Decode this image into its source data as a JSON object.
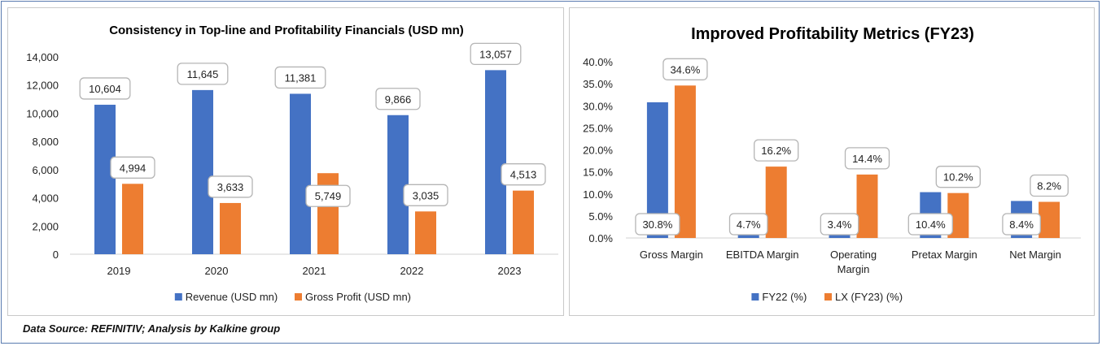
{
  "colors": {
    "series1": "#4472C4",
    "series2": "#ED7D31",
    "label_border": "#b5b5b5",
    "border": "#5a7bb0"
  },
  "footer": "Data Source: REFINITIV; Analysis by Kalkine group",
  "chart_data": [
    {
      "type": "bar",
      "title": "Consistency in Top-line and Profitability Financials (USD mn)",
      "categories": [
        "2019",
        "2020",
        "2021",
        "2022",
        "2023"
      ],
      "series": [
        {
          "name": "Revenue (USD mn)",
          "values": [
            10604,
            11645,
            11381,
            9866,
            13057
          ],
          "labels": [
            "10,604",
            "11,645",
            "11,381",
            "9,866",
            "13,057"
          ]
        },
        {
          "name": "Gross Profit (USD mn)",
          "values": [
            4994,
            3633,
            5749,
            3035,
            4513
          ],
          "labels": [
            "4,994",
            "3,633",
            "5,749",
            "3,035",
            "4,513"
          ]
        }
      ],
      "yticks": [
        "0",
        "2,000",
        "4,000",
        "6,000",
        "8,000",
        "10,000",
        "12,000",
        "14,000"
      ],
      "ylim": [
        0,
        14000
      ],
      "xlabel": "",
      "ylabel": "",
      "legend": "bottom"
    },
    {
      "type": "bar",
      "title": "Improved Profitability Metrics (FY23)",
      "categories": [
        [
          "Gross Margin"
        ],
        [
          "EBITDA Margin"
        ],
        [
          "Operating",
          "Margin"
        ],
        [
          "Pretax Margin"
        ],
        [
          "Net Margin"
        ]
      ],
      "series": [
        {
          "name": "FY22 (%)",
          "values": [
            30.8,
            4.7,
            3.4,
            10.4,
            8.4
          ],
          "labels": [
            "30.8%",
            "4.7%",
            "3.4%",
            "10.4%",
            "8.4%"
          ]
        },
        {
          "name": "LX (FY23) (%)",
          "values": [
            34.6,
            16.2,
            14.4,
            10.2,
            8.2
          ],
          "labels": [
            "34.6%",
            "16.2%",
            "14.4%",
            "10.2%",
            "8.2%"
          ]
        }
      ],
      "yticks": [
        "0.0%",
        "5.0%",
        "10.0%",
        "15.0%",
        "20.0%",
        "25.0%",
        "30.0%",
        "35.0%",
        "40.0%"
      ],
      "ylim": [
        0,
        40
      ],
      "xlabel": "",
      "ylabel": "",
      "legend": "bottom"
    }
  ]
}
